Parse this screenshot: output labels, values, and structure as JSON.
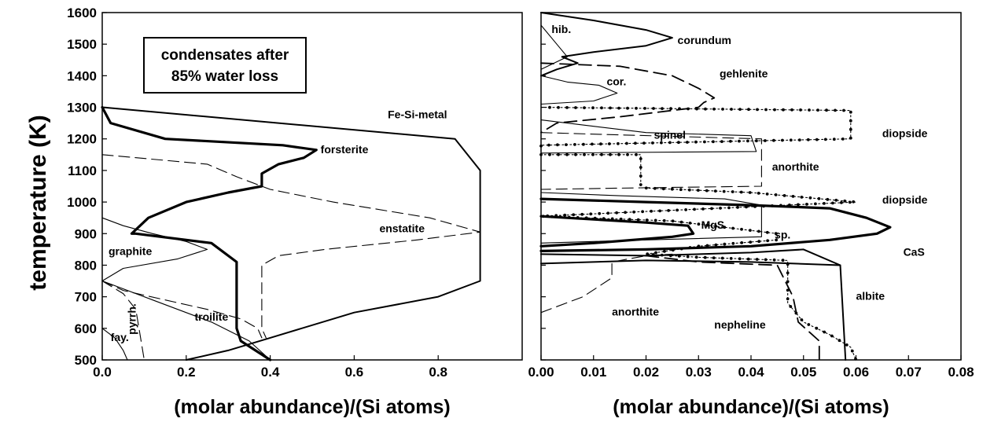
{
  "shared_ylabel": "temperature (K)",
  "chart_data": [
    {
      "type": "line",
      "xlabel": "(molar abundance)/(Si atoms)",
      "ylabel": "temperature (K)",
      "xlim": [
        0,
        1.0
      ],
      "ylim": [
        500,
        1600
      ],
      "x_ticks": [
        0.0,
        0.2,
        0.4,
        0.6,
        0.8
      ],
      "x_tick_labels": [
        "0.0",
        "0.2",
        "0.4",
        "0.6",
        "0.8"
      ],
      "y_ticks": [
        500,
        600,
        700,
        800,
        900,
        1000,
        1100,
        1200,
        1300,
        1400,
        1500,
        1600
      ],
      "y_tick_labels": [
        "500",
        "600",
        "700",
        "800",
        "900",
        "1000",
        "1100",
        "1200",
        "1300",
        "1400",
        "1500",
        "1600"
      ],
      "grid": false,
      "box_text": [
        "condensates after",
        "85% water loss"
      ],
      "series": [
        {
          "name": "Fe-Si-metal",
          "style": "medium",
          "points": [
            [
              0.0,
              1300
            ],
            [
              0.84,
              1200
            ],
            [
              0.9,
              1100
            ],
            [
              0.9,
              750
            ],
            [
              0.8,
              700
            ],
            [
              0.6,
              650
            ],
            [
              0.4,
              570
            ],
            [
              0.3,
              530
            ],
            [
              0.2,
              500
            ]
          ]
        },
        {
          "name": "forsterite",
          "style": "thick",
          "points": [
            [
              0.0,
              1300
            ],
            [
              0.02,
              1250
            ],
            [
              0.15,
              1200
            ],
            [
              0.43,
              1180
            ],
            [
              0.51,
              1165
            ],
            [
              0.48,
              1140
            ],
            [
              0.42,
              1120
            ],
            [
              0.38,
              1090
            ],
            [
              0.38,
              1050
            ],
            [
              0.3,
              1030
            ],
            [
              0.2,
              1000
            ],
            [
              0.11,
              950
            ],
            [
              0.07,
              900
            ],
            [
              0.08,
              900
            ],
            [
              0.26,
              870
            ],
            [
              0.32,
              810
            ],
            [
              0.32,
              600
            ],
            [
              0.33,
              560
            ],
            [
              0.4,
              500
            ]
          ]
        },
        {
          "name": "enstatite",
          "style": "dashed-thin",
          "points": [
            [
              0.0,
              1150
            ],
            [
              0.25,
              1120
            ],
            [
              0.32,
              1080
            ],
            [
              0.4,
              1040
            ],
            [
              0.55,
              1000
            ],
            [
              0.78,
              950
            ],
            [
              0.9,
              905
            ],
            [
              0.75,
              880
            ],
            [
              0.53,
              850
            ],
            [
              0.42,
              830
            ],
            [
              0.38,
              800
            ],
            [
              0.38,
              600
            ],
            [
              0.39,
              570
            ]
          ]
        },
        {
          "name": "graphite",
          "style": "thin",
          "points": [
            [
              0.0,
              950
            ],
            [
              0.05,
              925
            ],
            [
              0.12,
              900
            ],
            [
              0.2,
              875
            ],
            [
              0.25,
              850
            ],
            [
              0.18,
              820
            ],
            [
              0.05,
              790
            ],
            [
              0.0,
              750
            ]
          ]
        },
        {
          "name": "troilite",
          "style": "dashed-thin",
          "points": [
            [
              0.0,
              750
            ],
            [
              0.05,
              720
            ],
            [
              0.15,
              690
            ],
            [
              0.25,
              660
            ],
            [
              0.33,
              630
            ],
            [
              0.37,
              600
            ],
            [
              0.38,
              570
            ]
          ]
        },
        {
          "name": "troilite-thin",
          "style": "thin",
          "points": [
            [
              0.0,
              750
            ],
            [
              0.12,
              690
            ],
            [
              0.26,
              620
            ],
            [
              0.35,
              560
            ],
            [
              0.4,
              500
            ]
          ]
        },
        {
          "name": "pyrrh.",
          "style": "dashed-thin",
          "points": [
            [
              0.0,
              750
            ],
            [
              0.05,
              710
            ],
            [
              0.08,
              660
            ],
            [
              0.09,
              580
            ],
            [
              0.1,
              500
            ]
          ]
        },
        {
          "name": "fay.",
          "style": "thin",
          "points": [
            [
              0.0,
              600
            ],
            [
              0.03,
              570
            ],
            [
              0.05,
              530
            ],
            [
              0.06,
              500
            ]
          ]
        }
      ],
      "annotations": [
        {
          "text": "Fe-Si-metal",
          "x": 0.68,
          "y": 1265
        },
        {
          "text": "forsterite",
          "x": 0.52,
          "y": 1155
        },
        {
          "text": "enstatite",
          "x": 0.66,
          "y": 905
        },
        {
          "text": "graphite",
          "x": 0.015,
          "y": 832
        },
        {
          "text": "troilite",
          "x": 0.22,
          "y": 625
        },
        {
          "text": "fay.",
          "x": 0.02,
          "y": 560
        },
        {
          "text": "pyrrh.",
          "x": 0.08,
          "y": 580,
          "rotated": true
        }
      ]
    },
    {
      "type": "line",
      "xlabel": "(molar abundance)/(Si atoms)",
      "ylabel": "",
      "xlim": [
        0,
        0.08
      ],
      "ylim": [
        500,
        1600
      ],
      "x_ticks": [
        0.0,
        0.01,
        0.02,
        0.03,
        0.04,
        0.05,
        0.06,
        0.07,
        0.08
      ],
      "x_tick_labels": [
        "0.00",
        "0.01",
        "0.02",
        "0.03",
        "0.04",
        "0.05",
        "0.06",
        "0.07",
        "0.08"
      ],
      "y_ticks": [
        500,
        600,
        700,
        800,
        900,
        1000,
        1100,
        1200,
        1300,
        1400,
        1500,
        1600
      ],
      "grid": false,
      "series": [
        {
          "name": "corundum",
          "style": "medium",
          "points": [
            [
              0.0,
              1600
            ],
            [
              0.01,
              1575
            ],
            [
              0.02,
              1545
            ],
            [
              0.025,
              1520
            ],
            [
              0.02,
              1495
            ],
            [
              0.01,
              1475
            ],
            [
              0.004,
              1460
            ],
            [
              0.007,
              1440
            ],
            [
              0.003,
              1420
            ],
            [
              0.0,
              1400
            ]
          ]
        },
        {
          "name": "hib.",
          "style": "thin",
          "points": [
            [
              0.0,
              1560
            ],
            [
              0.003,
              1500
            ],
            [
              0.005,
              1460
            ],
            [
              0.0,
              1420
            ]
          ]
        },
        {
          "name": "cor.",
          "style": "thin",
          "points": [
            [
              0.0,
              1400
            ],
            [
              0.005,
              1380
            ],
            [
              0.011,
              1370
            ],
            [
              0.0145,
              1345
            ],
            [
              0.01,
              1320
            ],
            [
              0.0,
              1310
            ]
          ]
        },
        {
          "name": "gehlenite",
          "style": "dashed-medium",
          "points": [
            [
              0.0,
              1440
            ],
            [
              0.015,
              1430
            ],
            [
              0.025,
              1400
            ],
            [
              0.03,
              1360
            ],
            [
              0.033,
              1330
            ],
            [
              0.031,
              1315
            ],
            [
              0.03,
              1300
            ],
            [
              0.015,
              1270
            ],
            [
              0.003,
              1250
            ],
            [
              0.0,
              1220
            ]
          ]
        },
        {
          "name": "spinel",
          "style": "thin",
          "points": [
            [
              0.0,
              1260
            ],
            [
              0.01,
              1240
            ],
            [
              0.02,
              1220
            ],
            [
              0.04,
              1210
            ],
            [
              0.041,
              1160
            ],
            [
              0.0,
              1155
            ]
          ]
        },
        {
          "name": "diopside",
          "style": "dotted-markers",
          "markers": true,
          "points": [
            [
              0.0,
              1300
            ],
            [
              0.059,
              1290
            ],
            [
              0.059,
              1200
            ],
            [
              0.0,
              1180
            ],
            [
              0.0,
              1150
            ],
            [
              0.019,
              1150
            ],
            [
              0.019,
              1045
            ],
            [
              0.04,
              1030
            ],
            [
              0.06,
              1000
            ],
            [
              0.04,
              985
            ],
            [
              0.02,
              970
            ],
            [
              0.0,
              955
            ],
            [
              0.025,
              940
            ],
            [
              0.045,
              900
            ],
            [
              0.045,
              880
            ],
            [
              0.03,
              860
            ],
            [
              0.02,
              835
            ],
            [
              0.03,
              825
            ],
            [
              0.047,
              815
            ],
            [
              0.047,
              680
            ],
            [
              0.05,
              620
            ],
            [
              0.055,
              580
            ],
            [
              0.059,
              540
            ],
            [
              0.06,
              500
            ]
          ]
        },
        {
          "name": "anorthite (upper)",
          "style": "dashed-thin",
          "points": [
            [
              0.0,
              1220
            ],
            [
              0.01,
              1215
            ],
            [
              0.042,
              1200
            ],
            [
              0.042,
              1050
            ],
            [
              0.019,
              1045
            ],
            [
              0.0,
              1040
            ]
          ]
        },
        {
          "name": "spinel-lower",
          "style": "thin",
          "points": [
            [
              0.0,
              1030
            ],
            [
              0.015,
              1020
            ],
            [
              0.035,
              1010
            ],
            [
              0.042,
              990
            ],
            [
              0.042,
              890
            ],
            [
              0.02,
              880
            ],
            [
              0.0,
              870
            ]
          ]
        },
        {
          "name": "CaS",
          "style": "thick",
          "points": [
            [
              0.0,
              1010
            ],
            [
              0.02,
              1000
            ],
            [
              0.04,
              990
            ],
            [
              0.055,
              980
            ],
            [
              0.062,
              950
            ],
            [
              0.0665,
              920
            ],
            [
              0.064,
              900
            ],
            [
              0.055,
              880
            ],
            [
              0.04,
              860
            ],
            [
              0.02,
              850
            ],
            [
              0.0,
              845
            ]
          ]
        },
        {
          "name": "MgS",
          "style": "thick",
          "points": [
            [
              0.0,
              955
            ],
            [
              0.01,
              945
            ],
            [
              0.02,
              935
            ],
            [
              0.028,
              925
            ],
            [
              0.029,
              900
            ],
            [
              0.025,
              890
            ],
            [
              0.01,
              870
            ],
            [
              0.0,
              860
            ]
          ]
        },
        {
          "name": "albite",
          "style": "medium",
          "points": [
            [
              0.0,
              835
            ],
            [
              0.02,
              830
            ],
            [
              0.04,
              840
            ],
            [
              0.05,
              850
            ],
            [
              0.057,
              800
            ],
            [
              0.058,
              500
            ]
          ]
        },
        {
          "name": "albite-lower",
          "style": "medium",
          "points": [
            [
              0.0,
              805
            ],
            [
              0.02,
              815
            ],
            [
              0.04,
              810
            ],
            [
              0.057,
              800
            ]
          ]
        },
        {
          "name": "nepheline",
          "style": "dashed-medium",
          "points": [
            [
              0.02,
              830
            ],
            [
              0.03,
              810
            ],
            [
              0.045,
              800
            ],
            [
              0.048,
              700
            ],
            [
              0.049,
              620
            ],
            [
              0.053,
              560
            ],
            [
              0.053,
              500
            ]
          ]
        },
        {
          "name": "anorthite (lower)",
          "style": "dashed-thin",
          "points": [
            [
              0.0,
              650
            ],
            [
              0.008,
              700
            ],
            [
              0.0135,
              760
            ],
            [
              0.0135,
              810
            ],
            [
              0.02,
              830
            ],
            [
              0.025,
              835
            ]
          ]
        }
      ],
      "annotations": [
        {
          "text": "hib.",
          "x": 0.002,
          "y": 1535
        },
        {
          "text": "corundum",
          "x": 0.026,
          "y": 1500
        },
        {
          "text": "gehlenite",
          "x": 0.034,
          "y": 1395
        },
        {
          "text": "cor.",
          "x": 0.0125,
          "y": 1370
        },
        {
          "text": "spinel",
          "x": 0.0215,
          "y": 1200
        },
        {
          "text": "diopside",
          "x": 0.065,
          "y": 1205
        },
        {
          "text": "anorthite",
          "x": 0.044,
          "y": 1100
        },
        {
          "text": "diopside",
          "x": 0.065,
          "y": 995
        },
        {
          "text": "MgS",
          "x": 0.0305,
          "y": 915
        },
        {
          "text": "sp.",
          "x": 0.0445,
          "y": 885
        },
        {
          "text": "CaS",
          "x": 0.069,
          "y": 830
        },
        {
          "text": "albite",
          "x": 0.06,
          "y": 690
        },
        {
          "text": "anorthite",
          "x": 0.0135,
          "y": 640
        },
        {
          "text": "nepheline",
          "x": 0.033,
          "y": 600
        }
      ]
    }
  ]
}
